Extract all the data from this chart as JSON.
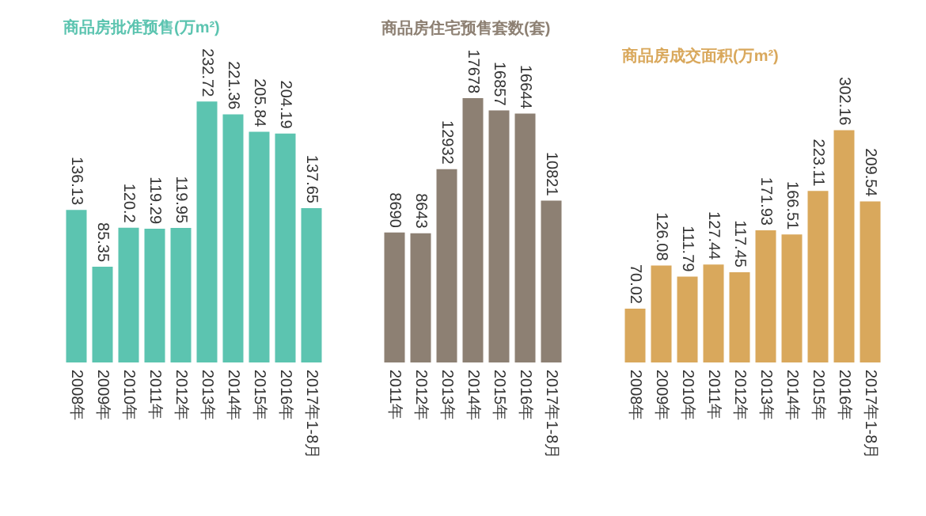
{
  "chart_data": [
    {
      "type": "bar",
      "title": "商品房批准预售(万m²)",
      "categories": [
        "2008年",
        "2009年",
        "2010年",
        "2011年",
        "2012年",
        "2013年",
        "2014年",
        "2015年",
        "2016年",
        "2017年1-8月"
      ],
      "values": [
        136.13,
        85.35,
        120.2,
        119.29,
        119.95,
        232.72,
        221.36,
        205.84,
        204.19,
        137.65
      ],
      "color": "#5cc4b0",
      "data_labels": true
    },
    {
      "type": "bar",
      "title": "商品房住宅预售套数(套)",
      "categories": [
        "2011年",
        "2012年",
        "2013年",
        "2014年",
        "2015年",
        "2016年",
        "2017年1-8月"
      ],
      "values": [
        8690,
        8643,
        12932,
        17678,
        16857,
        16644,
        10821
      ],
      "color": "#8d8073",
      "data_labels": true
    },
    {
      "type": "bar",
      "title": "商品房成交面积(万m²)",
      "categories": [
        "2008年",
        "2009年",
        "2010年",
        "2011年",
        "2012年",
        "2013年",
        "2014年",
        "2015年",
        "2016年",
        "2017年1-8月"
      ],
      "values": [
        70.02,
        126.08,
        111.79,
        127.44,
        117.45,
        171.93,
        166.51,
        223.11,
        302.16,
        209.54
      ],
      "color": "#d9a85c",
      "data_labels": true
    }
  ]
}
